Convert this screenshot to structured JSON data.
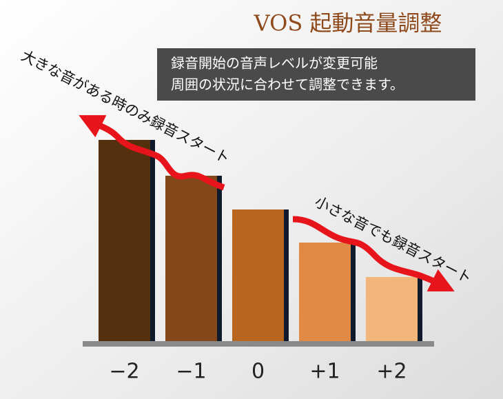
{
  "chart_data": {
    "type": "bar",
    "title": "VOS 起動音量調整",
    "description": [
      "録音開始の音声レベルが変更可能",
      "周囲の状況に合わせて調整できます。"
    ],
    "annotations": [
      "大きな音がある時のみ録音スタート",
      "小さな音でも録音スタート"
    ],
    "categories": [
      "−2",
      "−1",
      "0",
      "+1",
      "+2"
    ],
    "values": [
      292,
      240,
      191,
      143,
      93
    ],
    "colors": [
      "#55300e",
      "#84471a",
      "#b8651f",
      "#e08a45",
      "#f3b67a"
    ],
    "ylim": [
      0,
      300
    ]
  }
}
